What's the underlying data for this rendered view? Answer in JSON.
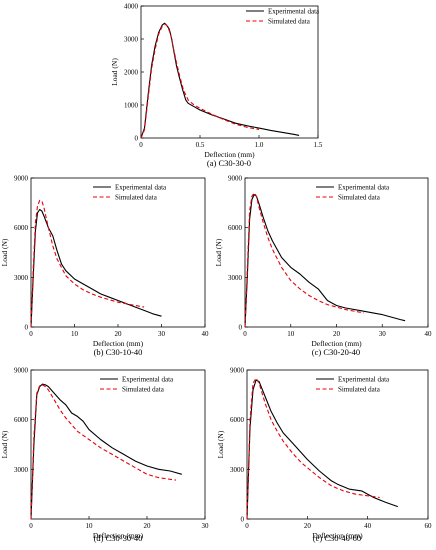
{
  "chart_data": [
    {
      "type": "line",
      "caption": "(a) C30-30-0",
      "xlabel": "Deflection (mm)",
      "ylabel": "Load (N)",
      "xlim": [
        0,
        1.5
      ],
      "ylim": [
        0,
        4000
      ],
      "xticks": [
        "0",
        "0.5",
        "1.0",
        "1.5"
      ],
      "yticks": [
        "0",
        "1000",
        "2000",
        "3000",
        "4000"
      ],
      "legend_position": "top-right",
      "series": [
        {
          "name": "Experimental data",
          "style": "solid",
          "color": "#000000",
          "x": [
            0,
            0.03,
            0.06,
            0.09,
            0.12,
            0.15,
            0.18,
            0.2,
            0.22,
            0.24,
            0.26,
            0.28,
            0.3,
            0.32,
            0.35,
            0.38,
            0.4,
            0.45,
            0.5,
            0.6,
            0.7,
            0.8,
            0.9,
            1.0,
            1.1,
            1.2,
            1.3,
            1.34
          ],
          "y": [
            0,
            300,
            1300,
            2200,
            2800,
            3200,
            3420,
            3480,
            3400,
            3300,
            3000,
            2600,
            2200,
            1900,
            1500,
            1150,
            1050,
            950,
            850,
            700,
            580,
            450,
            370,
            300,
            230,
            170,
            110,
            80
          ]
        },
        {
          "name": "Simulated data",
          "style": "dashed",
          "color": "#e8000b",
          "x": [
            0,
            0.03,
            0.06,
            0.09,
            0.12,
            0.15,
            0.18,
            0.21,
            0.23,
            0.25,
            0.27,
            0.3,
            0.33,
            0.36,
            0.4,
            0.45,
            0.5,
            0.6,
            0.7,
            0.8,
            0.9,
            1.0
          ],
          "y": [
            0,
            250,
            1200,
            2100,
            2700,
            3150,
            3380,
            3450,
            3350,
            3150,
            2800,
            2300,
            1850,
            1450,
            1150,
            1000,
            900,
            720,
            560,
            420,
            320,
            260
          ]
        }
      ]
    },
    {
      "type": "line",
      "caption": "(b) C30-10-40",
      "xlabel": "Deflection (mm)",
      "ylabel": "Load (N)",
      "xlim": [
        0,
        40
      ],
      "ylim": [
        0,
        9000
      ],
      "xticks": [
        "0",
        "10",
        "20",
        "30",
        "40"
      ],
      "yticks": [
        "0",
        "3000",
        "6000",
        "9000"
      ],
      "legend_position": "top-right",
      "series": [
        {
          "name": "Experimental data",
          "style": "solid",
          "color": "#000000",
          "x": [
            0,
            0.5,
            1,
            1.5,
            2,
            2.5,
            3,
            4,
            5,
            6,
            7,
            8,
            10,
            12,
            14,
            16,
            18,
            20,
            22,
            24,
            26,
            28,
            30
          ],
          "y": [
            0,
            3000,
            5800,
            6900,
            7100,
            7000,
            6700,
            6000,
            5500,
            4600,
            3800,
            3400,
            2900,
            2600,
            2300,
            2000,
            1800,
            1600,
            1400,
            1200,
            1000,
            800,
            650
          ]
        },
        {
          "name": "Simulated data",
          "style": "dashed",
          "color": "#e8000b",
          "x": [
            0,
            0.5,
            1,
            1.5,
            2,
            2.5,
            3,
            4,
            5,
            6,
            8,
            10,
            12,
            14,
            16,
            18,
            20,
            22,
            24,
            26
          ],
          "y": [
            0,
            3500,
            6300,
            7300,
            7650,
            7600,
            7200,
            6000,
            4900,
            4100,
            3100,
            2600,
            2250,
            2000,
            1800,
            1650,
            1500,
            1400,
            1300,
            1200
          ]
        }
      ]
    },
    {
      "type": "line",
      "caption": "(c) C30-20-40",
      "xlabel": "Deflection (mm)",
      "ylabel": "Load (N)",
      "xlim": [
        0,
        40
      ],
      "ylim": [
        0,
        9000
      ],
      "xticks": [
        "0",
        "10",
        "20",
        "30",
        "40"
      ],
      "yticks": [
        "0",
        "3000",
        "6000",
        "9000"
      ],
      "legend_position": "top-right",
      "series": [
        {
          "name": "Experimental data",
          "style": "solid",
          "color": "#000000",
          "x": [
            0,
            0.5,
            1,
            1.5,
            2,
            2.5,
            3,
            4,
            5,
            6,
            8,
            10,
            12,
            14,
            16,
            18,
            20,
            22,
            25,
            28,
            30,
            32,
            34,
            35
          ],
          "y": [
            0,
            3000,
            6500,
            7700,
            8000,
            7900,
            7500,
            6600,
            5800,
            5200,
            4200,
            3600,
            3200,
            2700,
            2300,
            1600,
            1300,
            1150,
            1000,
            850,
            750,
            600,
            450,
            380
          ]
        },
        {
          "name": "Simulated data",
          "style": "dashed",
          "color": "#e8000b",
          "x": [
            0,
            0.5,
            1,
            1.5,
            2,
            2.5,
            3,
            4,
            5,
            6,
            8,
            10,
            12,
            14,
            16,
            18,
            20,
            22,
            24,
            26
          ],
          "y": [
            0,
            3500,
            7000,
            7900,
            8100,
            7900,
            7300,
            6300,
            5400,
            4700,
            3600,
            2800,
            2300,
            1900,
            1600,
            1350,
            1200,
            1050,
            950,
            850
          ]
        }
      ]
    },
    {
      "type": "line",
      "caption": "(d) C30-30-40",
      "xlabel": "Deflection (mm)",
      "ylabel": "Load (N)",
      "xlim": [
        0,
        30
      ],
      "ylim": [
        0,
        9000
      ],
      "xticks": [
        "0",
        "10",
        "20",
        "30"
      ],
      "yticks": [
        "3000",
        "6000",
        "9000"
      ],
      "legend_position": "top-right",
      "series": [
        {
          "name": "Experimental data",
          "style": "solid",
          "color": "#000000",
          "x": [
            0,
            0.5,
            1,
            1.5,
            2,
            2.5,
            3,
            4,
            5,
            6,
            7,
            8,
            9,
            10,
            12,
            14,
            16,
            18,
            20,
            22,
            24,
            26
          ],
          "y": [
            0,
            4500,
            7500,
            8000,
            8150,
            8100,
            8000,
            7600,
            7200,
            6900,
            6400,
            6200,
            5900,
            5400,
            4800,
            4300,
            3900,
            3500,
            3200,
            3000,
            2900,
            2700
          ]
        },
        {
          "name": "Simulated data",
          "style": "dashed",
          "color": "#e8000b",
          "x": [
            0,
            0.5,
            1,
            1.5,
            2,
            2.5,
            3,
            4,
            5,
            6,
            8,
            10,
            12,
            14,
            16,
            18,
            20,
            22,
            24,
            25
          ],
          "y": [
            0,
            5000,
            7600,
            8050,
            8100,
            8000,
            7800,
            7200,
            6600,
            6100,
            5300,
            4800,
            4300,
            3900,
            3500,
            3100,
            2700,
            2500,
            2400,
            2350
          ]
        }
      ]
    },
    {
      "type": "line",
      "caption": "(e) C30-40-60",
      "xlabel": "Deflection (mm)",
      "ylabel": "Load (N)",
      "xlim": [
        0,
        60
      ],
      "ylim": [
        0,
        9000
      ],
      "xticks": [
        "0",
        "20",
        "40",
        "60"
      ],
      "yticks": [
        "0",
        "3000",
        "6000",
        "9000"
      ],
      "legend_position": "top-right",
      "series": [
        {
          "name": "Experimental data",
          "style": "solid",
          "color": "#000000",
          "x": [
            0,
            1,
            2,
            3,
            4,
            6,
            8,
            10,
            12,
            15,
            18,
            20,
            24,
            28,
            30,
            34,
            38,
            42,
            46,
            50
          ],
          "y": [
            0,
            5500,
            7800,
            8400,
            8300,
            7400,
            6500,
            5800,
            5200,
            4600,
            4000,
            3600,
            2900,
            2300,
            2100,
            1800,
            1700,
            1300,
            1000,
            750
          ]
        },
        {
          "name": "Simulated data",
          "style": "dashed",
          "color": "#e8000b",
          "x": [
            0,
            1,
            2,
            3,
            4,
            6,
            8,
            10,
            12,
            15,
            18,
            20,
            24,
            28,
            32,
            36,
            40,
            44
          ],
          "y": [
            0,
            6000,
            8200,
            8500,
            8200,
            7000,
            6000,
            5300,
            4700,
            4000,
            3400,
            3100,
            2500,
            2000,
            1700,
            1500,
            1400,
            1300
          ]
        }
      ]
    }
  ]
}
